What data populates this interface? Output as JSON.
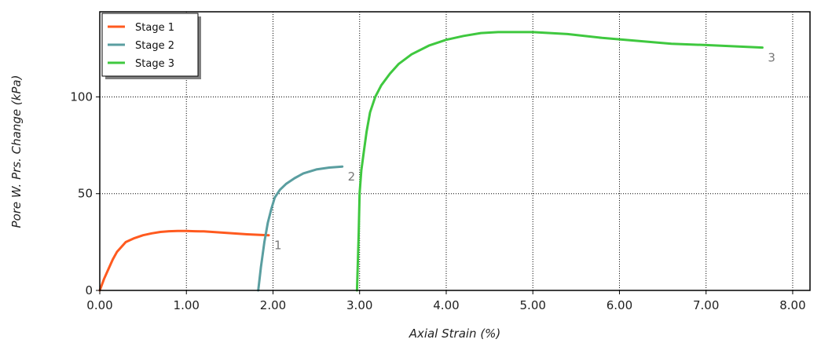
{
  "chart_data": {
    "type": "line",
    "title": "",
    "xlabel": "Axial Strain (%)",
    "ylabel": "Pore W. Prs. Change (kPa)",
    "xlim": [
      0,
      8.2
    ],
    "ylim": [
      0,
      144
    ],
    "xticks": [
      0,
      1,
      2,
      3,
      4,
      5,
      6,
      7,
      8
    ],
    "xtick_labels": [
      "0.00",
      "1.00",
      "2.00",
      "3.00",
      "4.00",
      "5.00",
      "6.00",
      "7.00",
      "8.00"
    ],
    "yticks": [
      0,
      50,
      100
    ],
    "ytick_labels": [
      "0",
      "50",
      "100"
    ],
    "grid": true,
    "legend_position": "top-left",
    "series": [
      {
        "name": "Stage 1",
        "color": "#ff5a1f",
        "end_label": "1",
        "x": [
          0.0,
          0.05,
          0.1,
          0.15,
          0.2,
          0.3,
          0.4,
          0.5,
          0.6,
          0.7,
          0.8,
          0.9,
          1.0,
          1.1,
          1.2,
          1.3,
          1.4,
          1.5,
          1.6,
          1.7,
          1.8,
          1.9,
          1.95
        ],
        "y": [
          0,
          6,
          11,
          16,
          20,
          25,
          27,
          28.5,
          29.5,
          30.2,
          30.6,
          30.7,
          30.7,
          30.6,
          30.5,
          30.2,
          29.9,
          29.6,
          29.3,
          29.0,
          28.8,
          28.6,
          28.5
        ]
      },
      {
        "name": "Stage 2",
        "color": "#5a9ea0",
        "end_label": "2",
        "x": [
          1.83,
          1.86,
          1.9,
          1.94,
          1.98,
          2.02,
          2.08,
          2.15,
          2.25,
          2.35,
          2.5,
          2.65,
          2.8
        ],
        "y": [
          0,
          12,
          25,
          35,
          42,
          48,
          52,
          55,
          58,
          60.5,
          62.5,
          63.5,
          64
        ]
      },
      {
        "name": "Stage 3",
        "color": "#3fc83f",
        "end_label": "3",
        "x": [
          2.97,
          2.99,
          3.0,
          3.02,
          3.05,
          3.08,
          3.12,
          3.18,
          3.25,
          3.35,
          3.45,
          3.6,
          3.8,
          4.0,
          4.2,
          4.4,
          4.6,
          5.0,
          5.4,
          5.8,
          6.2,
          6.6,
          7.0,
          7.4,
          7.65
        ],
        "y": [
          0,
          30,
          50,
          62,
          72,
          82,
          92,
          100,
          106,
          112,
          117,
          122,
          126.5,
          129.5,
          131.5,
          133,
          133.5,
          133.5,
          132.5,
          130.5,
          129,
          127.5,
          126.8,
          126,
          125.5
        ]
      }
    ]
  }
}
